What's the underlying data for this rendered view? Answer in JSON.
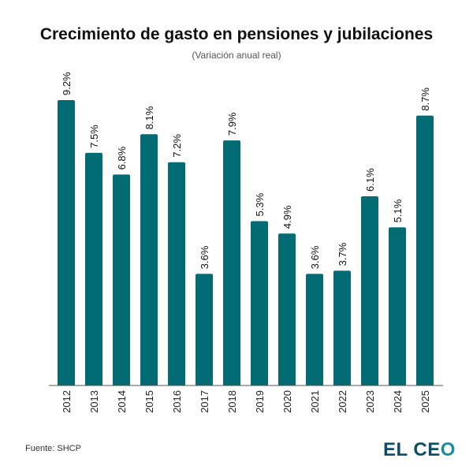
{
  "chart_data": {
    "type": "bar",
    "title": "Crecimiento de gasto en pensiones y jubilaciones",
    "subtitle": "(Variación anual real)",
    "categories": [
      "2012",
      "2013",
      "2014",
      "2015",
      "2016",
      "2017",
      "2018",
      "2019",
      "2020",
      "2021",
      "2022",
      "2023",
      "2024",
      "2025"
    ],
    "values": [
      9.2,
      7.5,
      6.8,
      8.1,
      7.2,
      3.6,
      7.9,
      5.3,
      4.9,
      3.6,
      3.7,
      6.1,
      5.1,
      8.7
    ],
    "labels": [
      "9.2%",
      "7.5%",
      "6.8%",
      "8.1%",
      "7.2%",
      "3.6%",
      "7.9%",
      "5.3%",
      "4.9%",
      "3.6%",
      "3.7%",
      "6.1%",
      "5.1%",
      "8.7%"
    ],
    "xlabel": "",
    "ylabel": "",
    "ylim": [
      0,
      9.2
    ],
    "grid": false,
    "bar_color": "#036b73"
  },
  "footer": {
    "source": "Fuente: SHCP",
    "logo_text_main": "EL CE",
    "logo_text_o": "O"
  }
}
